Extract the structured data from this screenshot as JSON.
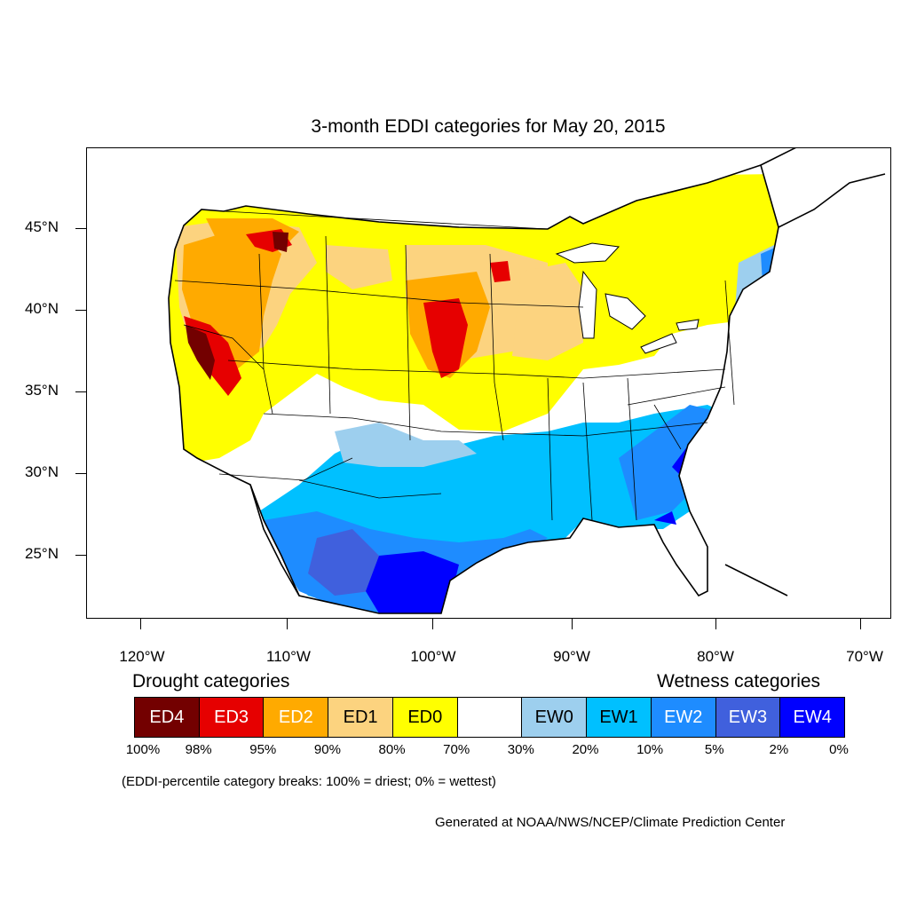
{
  "title": "3-month EDDI categories for May 20, 2015",
  "axes": {
    "y_labels": [
      "45°N",
      "40°N",
      "35°N",
      "30°N",
      "25°N"
    ],
    "x_labels": [
      "120°W",
      "110°W",
      "100°W",
      "90°W",
      "80°W",
      "70°W"
    ]
  },
  "legend": {
    "drought_heading": "Drought categories",
    "wetness_heading": "Wetness categories",
    "categories": [
      {
        "label": "ED4",
        "color": "#730000",
        "text_color": "#ffffff"
      },
      {
        "label": "ED3",
        "color": "#e60000",
        "text_color": "#ffffff"
      },
      {
        "label": "ED2",
        "color": "#ffaa00",
        "text_color": "#ffffff"
      },
      {
        "label": "ED1",
        "color": "#fcd37f",
        "text_color": "#000000"
      },
      {
        "label": "ED0",
        "color": "#ffff00",
        "text_color": "#000000"
      },
      {
        "label": "",
        "color": "#ffffff",
        "text_color": "#000000"
      },
      {
        "label": "EW0",
        "color": "#9dcfee",
        "text_color": "#000000"
      },
      {
        "label": "EW1",
        "color": "#00c0ff",
        "text_color": "#000000"
      },
      {
        "label": "EW2",
        "color": "#1e8cff",
        "text_color": "#ffffff"
      },
      {
        "label": "EW3",
        "color": "#4060dd",
        "text_color": "#ffffff"
      },
      {
        "label": "EW4",
        "color": "#0000ff",
        "text_color": "#ffffff"
      }
    ],
    "breaks": [
      "100%",
      "98%",
      "95%",
      "90%",
      "80%",
      "70%",
      "30%",
      "20%",
      "10%",
      "5%",
      "2%",
      "0%"
    ]
  },
  "note": "(EDDI-percentile category breaks: 100% = driest; 0% = wettest)",
  "credit": "Generated at NOAA/NWS/NCEP/Climate Prediction Center"
}
